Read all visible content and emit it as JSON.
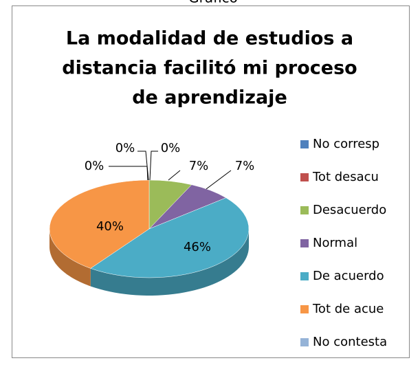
{
  "caption": "Gráfico",
  "chart_data": {
    "type": "pie3d",
    "title": [
      "La modalidad de estudios a",
      "distancia facilitó mi proceso",
      "de aprendizaje"
    ],
    "categories": [
      "No corresp",
      "Tot desacu",
      "Desacuerdo",
      "Normal",
      "De acuerdo",
      "Tot de acue",
      "No contesta"
    ],
    "values": [
      0,
      0,
      7,
      7,
      46,
      40,
      0
    ],
    "value_labels": [
      "0%",
      "0%",
      "7%",
      "7%",
      "46%",
      "40%",
      "0%"
    ],
    "colors": [
      "#4f81bd",
      "#c0504d",
      "#9bbb59",
      "#8064a2",
      "#4bacc6",
      "#f79646",
      "#95b3d7"
    ],
    "legend": "right"
  }
}
